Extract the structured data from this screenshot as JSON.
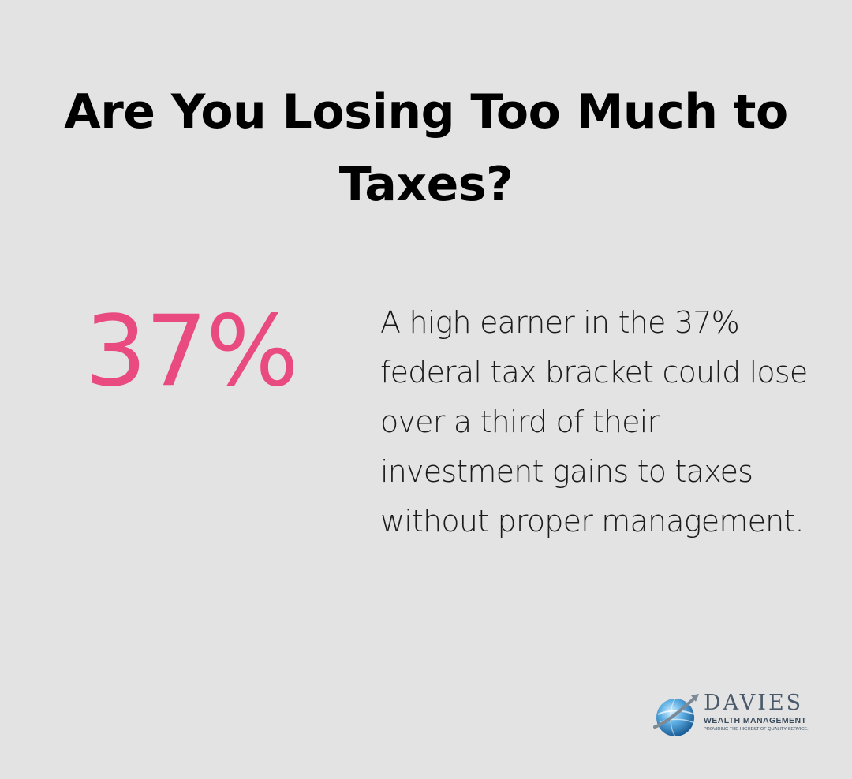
{
  "title": "Are You Losing Too Much to Taxes?",
  "stat": {
    "value": "37%",
    "description": "A high earner in the 37% federal tax bracket could lose over a third of their investment gains to taxes without proper management."
  },
  "logo": {
    "name": "DAVIES",
    "subtitle": "WEALTH MANAGEMENT",
    "tagline": "PROVIDING THE HIGHEST OF QUALITY SERVICE."
  },
  "colors": {
    "background": "#e2e3e2",
    "accent": "#e94a7f",
    "text": "#000000"
  }
}
